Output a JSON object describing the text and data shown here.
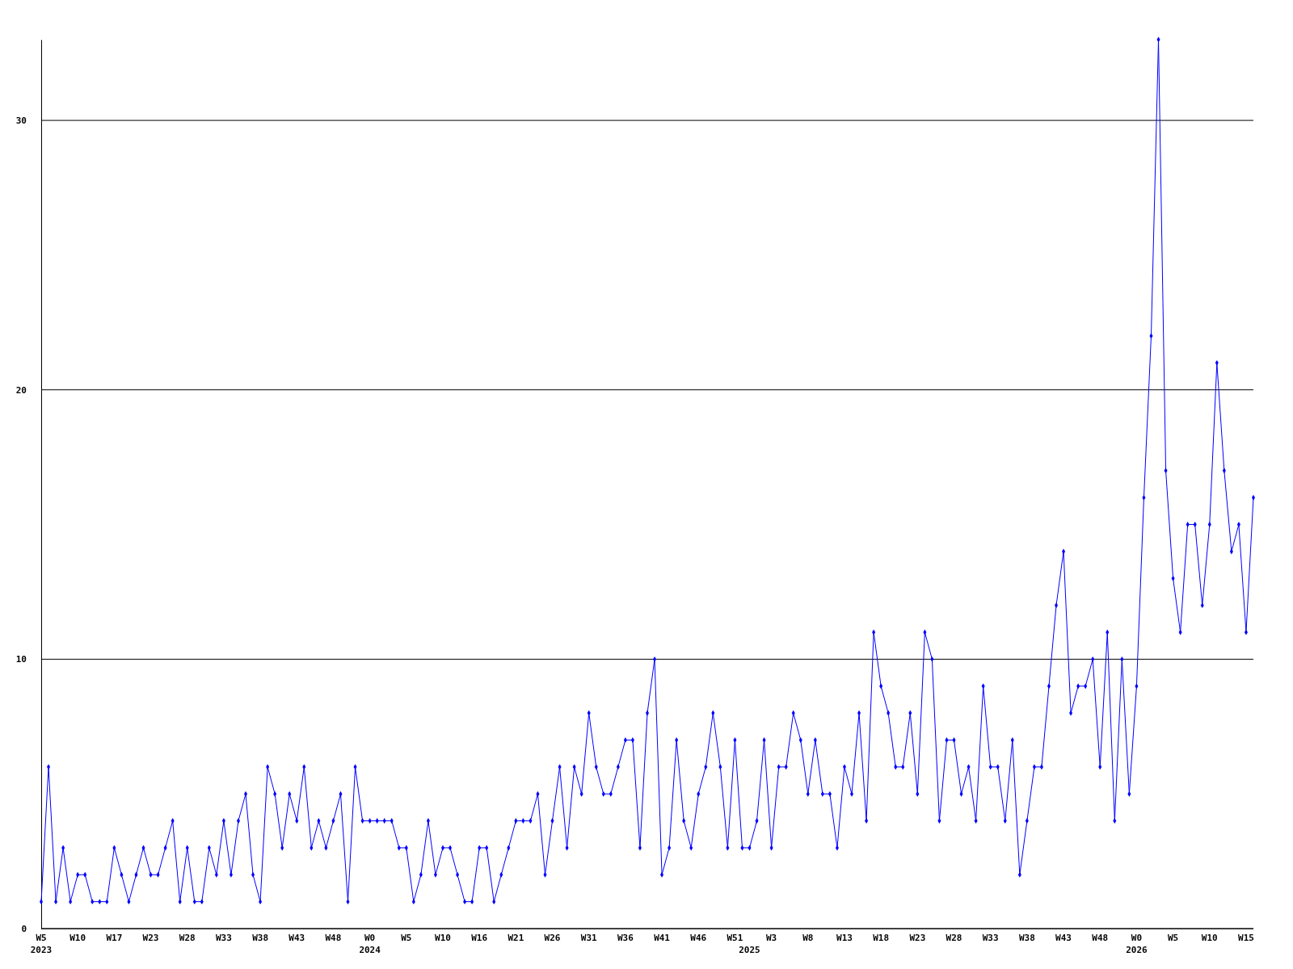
{
  "chart_data": {
    "type": "line",
    "categories": [
      "W5\n2023",
      null,
      null,
      null,
      null,
      "W10",
      null,
      null,
      null,
      null,
      "W17",
      null,
      null,
      null,
      null,
      "W23",
      null,
      null,
      null,
      null,
      "W28",
      null,
      null,
      null,
      null,
      "W33",
      null,
      null,
      null,
      null,
      "W38",
      null,
      null,
      null,
      null,
      "W43",
      null,
      null,
      null,
      null,
      "W48",
      null,
      null,
      null,
      null,
      "W0\n2024",
      null,
      null,
      null,
      null,
      "W5",
      null,
      null,
      null,
      null,
      "W10",
      null,
      null,
      null,
      null,
      "W16",
      null,
      null,
      null,
      null,
      "W21",
      null,
      null,
      null,
      null,
      "W26",
      null,
      null,
      null,
      null,
      "W31",
      null,
      null,
      null,
      null,
      "W36",
      null,
      null,
      null,
      null,
      "W41",
      null,
      null,
      null,
      null,
      "W46",
      null,
      null,
      null,
      null,
      "W51",
      null,
      "\n2025",
      null,
      null,
      "W3",
      null,
      null,
      null,
      null,
      "W8",
      null,
      null,
      null,
      null,
      "W13",
      null,
      null,
      null,
      null,
      "W18",
      null,
      null,
      null,
      null,
      "W23",
      null,
      null,
      null,
      null,
      "W28",
      null,
      null,
      null,
      null,
      "W33",
      null,
      null,
      null,
      null,
      "W38",
      null,
      null,
      null,
      null,
      "W43",
      null,
      null,
      null,
      null,
      "W48",
      null,
      null,
      null,
      null,
      "W0\n2026",
      null,
      null,
      null,
      null,
      "W5",
      null,
      null,
      null,
      null,
      "W10",
      null,
      null,
      null,
      null,
      "W15",
      null
    ],
    "series": [
      {
        "color": "#0000ff",
        "values": [
          1,
          6,
          1,
          3,
          1,
          2,
          2,
          1,
          1,
          1,
          3,
          2,
          1,
          2,
          3,
          2,
          2,
          3,
          4,
          1,
          3,
          1,
          1,
          3,
          2,
          4,
          2,
          4,
          5,
          2,
          1,
          6,
          5,
          3,
          5,
          4,
          6,
          3,
          4,
          3,
          4,
          5,
          1,
          6,
          4,
          4,
          4,
          4,
          4,
          3,
          3,
          1,
          2,
          4,
          2,
          3,
          3,
          2,
          1,
          1,
          3,
          3,
          1,
          2,
          3,
          4,
          4,
          4,
          5,
          2,
          4,
          6,
          3,
          6,
          5,
          8,
          6,
          5,
          5,
          6,
          7,
          7,
          3,
          8,
          10,
          2,
          3,
          7,
          4,
          3,
          5,
          6,
          8,
          6,
          3,
          7,
          3,
          3,
          4,
          7,
          3,
          6,
          6,
          8,
          7,
          5,
          7,
          5,
          5,
          3,
          6,
          5,
          8,
          4,
          11,
          9,
          8,
          6,
          6,
          8,
          5,
          11,
          10,
          4,
          7,
          7,
          5,
          6,
          4,
          9,
          6,
          6,
          4,
          7,
          2,
          4,
          6,
          6,
          9,
          12,
          14,
          8,
          9,
          9,
          10,
          6,
          11,
          4,
          10,
          5,
          9,
          16,
          22,
          33,
          17,
          13,
          11,
          15,
          15,
          12,
          15,
          21,
          17,
          14,
          15,
          11,
          16
        ]
      }
    ],
    "ylim": [
      0,
      33
    ],
    "yticks": [
      0,
      10,
      20,
      30
    ],
    "grid": "y",
    "marker": "diamond",
    "line_style": "solid"
  }
}
